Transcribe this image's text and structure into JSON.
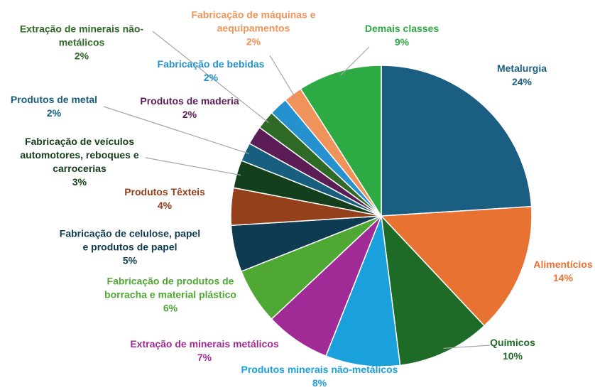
{
  "chart_data": {
    "type": "pie",
    "categories": [
      "Metalurgia",
      "Alimentícios",
      "Químicos",
      "Produtos minerais não-metálicos",
      "Extração de minerais metálicos",
      "Fabricação de produtos de borracha e material plástico",
      "Fabricação de celulose, papel e produtos de papel",
      "Produtos Têxteis",
      "Fabricação de veículos automotores, reboques e carrocerias",
      "Produtos de metal",
      "Produtos de maderia",
      "Extração de minerais não-metálicos",
      "Fabricação de bebidas",
      "Fabricação de máquinas e aequipamentos",
      "Demais classes"
    ],
    "values": [
      24,
      14,
      10,
      8,
      7,
      6,
      5,
      4,
      3,
      2,
      2,
      2,
      2,
      2,
      9
    ],
    "value_labels": [
      "24%",
      "14%",
      "10%",
      "8%",
      "7%",
      "6%",
      "5%",
      "4%",
      "3%",
      "2%",
      "2%",
      "2%",
      "2%",
      "2%",
      "9%"
    ],
    "colors": [
      "#1a5f82",
      "#e87232",
      "#1e6b28",
      "#1aa0dc",
      "#a02a96",
      "#4ea833",
      "#0e3a52",
      "#94401a",
      "#143f1c",
      "#175e7f",
      "#5c1c56",
      "#2e6a26",
      "#2592cf",
      "#f0935a",
      "#2daa44"
    ]
  }
}
